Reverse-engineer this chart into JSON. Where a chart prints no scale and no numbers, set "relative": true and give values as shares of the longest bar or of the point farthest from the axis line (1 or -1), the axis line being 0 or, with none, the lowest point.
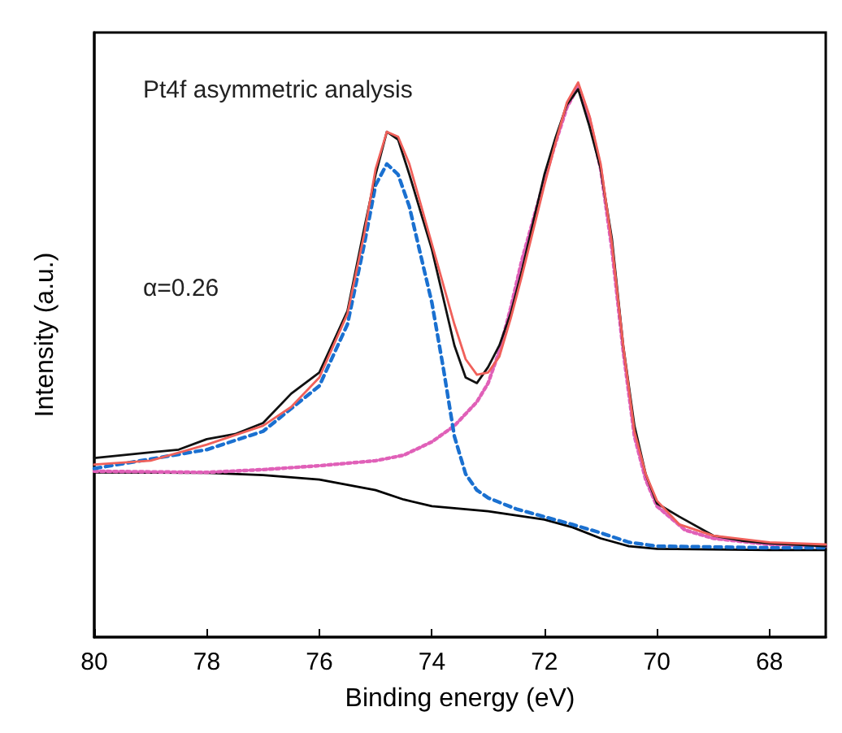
{
  "chart_data": {
    "type": "line",
    "relative": true,
    "xlabel": "Binding energy (eV)",
    "ylabel": "Intensity (a.u.)",
    "annotations": [
      "Pt4f asymmetric analysis",
      "α=0.26"
    ],
    "xlim": [
      80,
      67
    ],
    "xticks": [
      80,
      78,
      76,
      74,
      72,
      70,
      68
    ],
    "tick_labels": "x",
    "grid": false,
    "marker": "none",
    "series": [
      {
        "color": "#000000",
        "line_style": "solid",
        "x": [
          80,
          78,
          77,
          76,
          75,
          74.5,
          74,
          73,
          72,
          71.5,
          71,
          70.5,
          70,
          68,
          67
        ],
        "values": [
          0.297,
          0.296,
          0.292,
          0.284,
          0.265,
          0.248,
          0.236,
          0.227,
          0.212,
          0.198,
          0.178,
          0.164,
          0.159,
          0.157,
          0.157
        ]
      },
      {
        "color": "#e060b8",
        "line_style": "dotted",
        "x": [
          80,
          78,
          77,
          76,
          75,
          74.5,
          74,
          73.6,
          73.2,
          73,
          72.8,
          72.6,
          72.4,
          72,
          71.8,
          71.6,
          71.4,
          71.2,
          71,
          70.8,
          70.6,
          70.4,
          70.2,
          70,
          69.5,
          69,
          68,
          67
        ],
        "values": [
          0.299,
          0.297,
          0.302,
          0.309,
          0.318,
          0.328,
          0.352,
          0.381,
          0.424,
          0.458,
          0.516,
          0.593,
          0.68,
          0.824,
          0.892,
          0.955,
          0.993,
          0.935,
          0.844,
          0.699,
          0.516,
          0.362,
          0.284,
          0.236,
          0.193,
          0.178,
          0.167,
          0.164
        ]
      },
      {
        "color": "#1a70d0",
        "line_style": "dashed",
        "x": [
          80,
          78,
          77,
          76,
          75.5,
          75.2,
          75,
          74.8,
          74.6,
          74.4,
          74.2,
          74,
          73.8,
          73.6,
          73.4,
          73.2,
          73,
          72.5,
          72,
          71.5,
          71,
          70.5,
          70,
          68,
          67
        ],
        "values": [
          0.304,
          0.338,
          0.371,
          0.453,
          0.564,
          0.709,
          0.815,
          0.853,
          0.834,
          0.776,
          0.689,
          0.603,
          0.487,
          0.362,
          0.294,
          0.265,
          0.251,
          0.231,
          0.217,
          0.203,
          0.188,
          0.171,
          0.164,
          0.161,
          0.161
        ]
      },
      {
        "color": "#111111",
        "line_style": "solid",
        "x": [
          80,
          79.5,
          79,
          78.5,
          78,
          77.5,
          77,
          76.5,
          76,
          75.5,
          75.2,
          75,
          74.8,
          74.6,
          74.4,
          74,
          73.6,
          73.4,
          73.2,
          73,
          72.8,
          72.6,
          72.4,
          72,
          71.8,
          71.6,
          71.4,
          71.2,
          71,
          70.8,
          70.6,
          70.4,
          70.2,
          70,
          69.6,
          69,
          68.5,
          68,
          67
        ],
        "values": [
          0.323,
          0.328,
          0.333,
          0.338,
          0.357,
          0.366,
          0.386,
          0.439,
          0.477,
          0.588,
          0.738,
          0.834,
          0.911,
          0.897,
          0.834,
          0.699,
          0.526,
          0.468,
          0.458,
          0.487,
          0.526,
          0.583,
          0.661,
          0.834,
          0.901,
          0.96,
          0.988,
          0.921,
          0.844,
          0.718,
          0.526,
          0.381,
          0.294,
          0.241,
          0.217,
          0.183,
          0.174,
          0.169,
          0.164
        ]
      },
      {
        "color": "#f0605a",
        "line_style": "solid",
        "x": [
          80,
          79,
          78,
          77,
          76.5,
          76,
          75.5,
          75.2,
          75,
          74.8,
          74.6,
          74.4,
          74,
          73.6,
          73.4,
          73.2,
          73,
          72.8,
          72.6,
          72.4,
          72,
          71.8,
          71.6,
          71.4,
          71.2,
          71,
          70.8,
          70.6,
          70.4,
          70.2,
          70,
          69.6,
          69,
          68,
          67
        ],
        "values": [
          0.311,
          0.318,
          0.347,
          0.381,
          0.415,
          0.468,
          0.583,
          0.728,
          0.844,
          0.911,
          0.902,
          0.853,
          0.709,
          0.564,
          0.501,
          0.473,
          0.477,
          0.506,
          0.574,
          0.651,
          0.815,
          0.892,
          0.964,
          1,
          0.94,
          0.853,
          0.709,
          0.526,
          0.371,
          0.294,
          0.246,
          0.203,
          0.183,
          0.171,
          0.167
        ]
      }
    ]
  }
}
